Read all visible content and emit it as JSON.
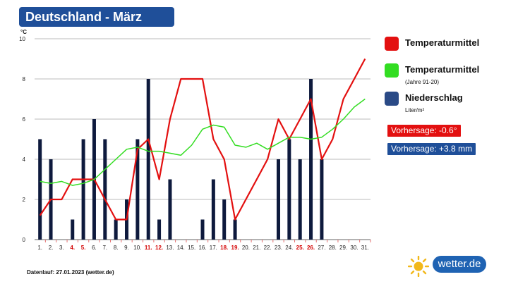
{
  "title": "Deutschland - März",
  "chart_data": {
    "type": "bar+line",
    "ylabel": "°C",
    "ylim": [
      0,
      10
    ],
    "yticks": [
      0,
      2,
      4,
      6,
      8,
      10
    ],
    "categories": [
      "1.",
      "2.",
      "3.",
      "4.",
      "5.",
      "6.",
      "7.",
      "8.",
      "9.",
      "10.",
      "11.",
      "12.",
      "13.",
      "14.",
      "15.",
      "16.",
      "17.",
      "18.",
      "19.",
      "20.",
      "21.",
      "22.",
      "23.",
      "24.",
      "25.",
      "26.",
      "27.",
      "28.",
      "29.",
      "30.",
      "31."
    ],
    "highlighted_days": [
      "4.",
      "5.",
      "11.",
      "12.",
      "18.",
      "19.",
      "25.",
      "26."
    ],
    "series": [
      {
        "name": "Temperaturmittel",
        "type": "line",
        "color": "#e31010",
        "values": [
          1.2,
          2.0,
          2.0,
          3.0,
          3.0,
          3.0,
          2.0,
          1.0,
          1.0,
          4.5,
          5.0,
          3.0,
          6.0,
          8.0,
          8.0,
          8.0,
          5.0,
          4.0,
          1.0,
          2.0,
          3.0,
          4.0,
          6.0,
          5.0,
          6.0,
          7.0,
          4.0,
          5.0,
          7.0,
          8.0,
          9.0
        ]
      },
      {
        "name": "Temperaturmittel",
        "sub": "(Jahre 91-20)",
        "type": "line",
        "color": "#33dd22",
        "values": [
          2.9,
          2.8,
          2.9,
          2.7,
          2.8,
          3.0,
          3.5,
          4.0,
          4.5,
          4.6,
          4.4,
          4.4,
          4.3,
          4.2,
          4.7,
          5.5,
          5.7,
          5.6,
          4.7,
          4.6,
          4.8,
          4.5,
          4.8,
          5.1,
          5.1,
          5.0,
          5.1,
          5.5,
          6.0,
          6.6,
          7.0
        ]
      },
      {
        "name": "Niederschlag",
        "sub": "Liter/m²",
        "type": "bar",
        "color": "#0e1a3d",
        "values": [
          5,
          4,
          0,
          1,
          5,
          6,
          5,
          1,
          2,
          5,
          8,
          1,
          3,
          0,
          0,
          1,
          3,
          2,
          1,
          0,
          0,
          0,
          4,
          5,
          4,
          8,
          4,
          0,
          0,
          0,
          0
        ]
      }
    ]
  },
  "legend": [
    {
      "label": "Temperaturmittel",
      "sub": "",
      "color": "#e31010"
    },
    {
      "label": "Temperaturmittel",
      "sub": "(Jahre 91-20)",
      "color": "#33dd22"
    },
    {
      "label": "Niederschlag",
      "sub": "Liter/m²",
      "color": "#2a4a86"
    }
  ],
  "forecast": {
    "temperature": "Vorhersage: -0.6°",
    "precipitation": "Vorhersage: +3.8 mm",
    "temperature_color": "#e31010",
    "precipitation_color": "#1f4f99"
  },
  "footer": "Datenlauf: 27.01.2023 (wetter.de)",
  "brand": "wetter.de"
}
